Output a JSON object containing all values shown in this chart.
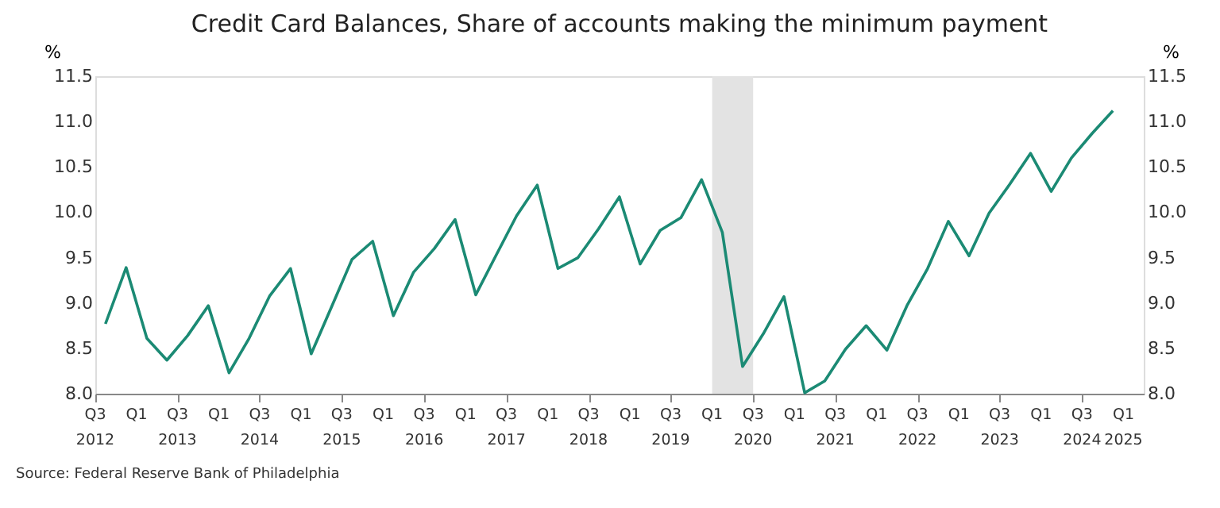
{
  "chart_data": {
    "type": "line",
    "title": "Credit Card Balances, Share of accounts making the minimum payment",
    "ylabel": "%",
    "y2label": "%",
    "x": [
      "2012-08-15",
      "2012-11-15",
      "2013-02-15",
      "2013-05-15",
      "2013-08-15",
      "2013-11-15",
      "2014-02-15",
      "2014-05-15",
      "2014-08-15",
      "2014-11-15",
      "2015-02-15",
      "2015-05-15",
      "2015-08-15",
      "2015-11-15",
      "2016-02-15",
      "2016-05-15",
      "2016-08-15",
      "2016-11-15",
      "2017-02-15",
      "2017-05-15",
      "2017-08-15",
      "2017-11-15",
      "2018-02-15",
      "2018-05-15",
      "2018-08-15",
      "2018-11-15",
      "2019-02-15",
      "2019-05-15",
      "2019-08-15",
      "2019-11-15",
      "2020-02-15",
      "2020-05-15",
      "2020-08-15",
      "2020-11-15",
      "2021-02-15",
      "2021-05-15",
      "2021-08-15",
      "2021-11-15",
      "2022-02-15",
      "2022-05-15",
      "2022-08-15",
      "2022-11-15",
      "2023-02-15",
      "2023-05-15",
      "2023-08-15",
      "2023-11-15",
      "2024-02-15",
      "2024-05-15",
      "2024-08-15",
      "2024-11-15"
    ],
    "series": [
      {
        "color": "#1b8a74",
        "values": [
          8.77,
          9.39,
          8.61,
          8.37,
          8.64,
          8.97,
          8.23,
          8.61,
          9.08,
          9.38,
          8.44,
          8.95,
          9.48,
          9.68,
          8.86,
          9.34,
          9.6,
          9.92,
          9.09,
          9.52,
          9.96,
          10.3,
          9.38,
          9.5,
          9.82,
          10.17,
          9.43,
          9.8,
          9.94,
          10.36,
          9.78,
          8.3,
          8.66,
          9.07,
          8.01,
          8.14,
          8.49,
          8.75,
          8.48,
          8.97,
          9.38,
          9.9,
          9.52,
          9.99,
          10.31,
          10.65,
          10.23,
          10.6,
          10.87,
          11.12
        ]
      }
    ],
    "xlim": [
      "2012-07-01",
      "2025-04-01"
    ],
    "xticks": [
      {
        "value": "2012-07-01",
        "label": "Q3 2012"
      },
      {
        "value": "2013-01-01",
        "label": "Q1"
      },
      {
        "value": "2013-07-01",
        "label": "Q3 2013"
      },
      {
        "value": "2014-01-01",
        "label": "Q1"
      },
      {
        "value": "2014-07-01",
        "label": "Q3 2014"
      },
      {
        "value": "2015-01-01",
        "label": "Q1"
      },
      {
        "value": "2015-07-01",
        "label": "Q3 2015"
      },
      {
        "value": "2016-01-01",
        "label": "Q1"
      },
      {
        "value": "2016-07-01",
        "label": "Q3 2016"
      },
      {
        "value": "2017-01-01",
        "label": "Q1"
      },
      {
        "value": "2017-07-01",
        "label": "Q3 2017"
      },
      {
        "value": "2018-01-01",
        "label": "Q1"
      },
      {
        "value": "2018-07-01",
        "label": "Q3 2018"
      },
      {
        "value": "2019-01-01",
        "label": "Q1"
      },
      {
        "value": "2019-07-01",
        "label": "Q3 2019"
      },
      {
        "value": "2020-01-01",
        "label": "Q1"
      },
      {
        "value": "2020-07-01",
        "label": "Q3 2020"
      },
      {
        "value": "2021-01-01",
        "label": "Q1"
      },
      {
        "value": "2021-07-01",
        "label": "Q3 2021"
      },
      {
        "value": "2022-01-01",
        "label": "Q1"
      },
      {
        "value": "2022-07-01",
        "label": "Q3 2022"
      },
      {
        "value": "2023-01-01",
        "label": "Q1"
      },
      {
        "value": "2023-07-01",
        "label": "Q3 2023"
      },
      {
        "value": "2024-01-01",
        "label": "Q1"
      },
      {
        "value": "2024-07-01",
        "label": "Q3 2024"
      },
      {
        "value": "2025-01-01",
        "label": "Q1 2025"
      }
    ],
    "ylim": [
      8.0,
      11.5
    ],
    "yticks": [
      {
        "value": 8,
        "label": "8.0"
      },
      8.5,
      {
        "value": 9,
        "label": "9.0"
      },
      9.5,
      {
        "value": 10,
        "label": "10.0"
      },
      10.5,
      {
        "value": 11,
        "label": "11.0"
      },
      11.5
    ],
    "y2lim": [
      8.0,
      11.5
    ],
    "y2ticks": [
      {
        "value": 8,
        "label": "8.0"
      },
      8.5,
      {
        "value": 9,
        "label": "9.0"
      },
      9.5,
      {
        "value": 10,
        "label": "10.0"
      },
      10.5,
      {
        "value": 11,
        "label": "11.0"
      },
      11.5
    ],
    "bands": [
      {
        "axis": "x",
        "from": "2020-01-01",
        "to": "2020-07-01",
        "color": "#e3e3e3"
      }
    ],
    "grid": false,
    "marker": "none",
    "line_style": "solid",
    "annotations": [
      "Source: Federal Reserve Bank of Philadelphia"
    ]
  }
}
